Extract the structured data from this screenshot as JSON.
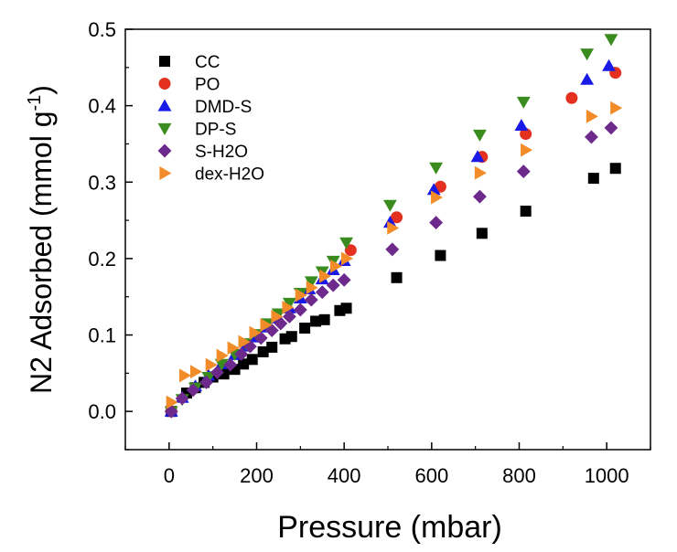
{
  "chart_data": {
    "type": "scatter",
    "title": "",
    "xlabel": "Pressure (mbar)",
    "ylabel_main": "N2 Adsorbed (mmol g",
    "ylabel_sup": "-1",
    "ylabel_close": ")",
    "xlim": [
      -100,
      1100
    ],
    "ylim": [
      -0.05,
      0.5
    ],
    "xticks": [
      0,
      200,
      400,
      600,
      800,
      1000
    ],
    "xtick_labels": [
      "0",
      "200",
      "400",
      "600",
      "800",
      "1000"
    ],
    "yticks": [
      0.0,
      0.1,
      0.2,
      0.3,
      0.4,
      0.5
    ],
    "ytick_labels": [
      "0.0",
      "0.1",
      "0.2",
      "0.3",
      "0.4",
      "0.5"
    ],
    "grid": false,
    "legend_position": "top-left",
    "series": [
      {
        "name": "CC",
        "marker": "square",
        "color": "#000000",
        "points": [
          [
            5,
            0.0
          ],
          [
            40,
            0.024
          ],
          [
            60,
            0.031
          ],
          [
            80,
            0.038
          ],
          [
            100,
            0.045
          ],
          [
            125,
            0.049
          ],
          [
            150,
            0.055
          ],
          [
            170,
            0.062
          ],
          [
            190,
            0.068
          ],
          [
            215,
            0.078
          ],
          [
            235,
            0.084
          ],
          [
            265,
            0.095
          ],
          [
            280,
            0.098
          ],
          [
            310,
            0.109
          ],
          [
            335,
            0.118
          ],
          [
            355,
            0.12
          ],
          [
            390,
            0.132
          ],
          [
            405,
            0.135
          ],
          [
            520,
            0.175
          ],
          [
            620,
            0.204
          ],
          [
            715,
            0.233
          ],
          [
            815,
            0.262
          ],
          [
            970,
            0.305
          ],
          [
            1020,
            0.318
          ]
        ]
      },
      {
        "name": "PO",
        "marker": "circle",
        "color": "#e3301f",
        "points": [
          [
            5,
            0.0
          ],
          [
            415,
            0.211
          ],
          [
            520,
            0.254
          ],
          [
            620,
            0.294
          ],
          [
            715,
            0.333
          ],
          [
            815,
            0.363
          ],
          [
            920,
            0.41
          ],
          [
            1020,
            0.443
          ]
        ]
      },
      {
        "name": "DMD-S",
        "marker": "triangle-up",
        "color": "#1a1ae6",
        "points": [
          [
            5,
            0.0
          ],
          [
            30,
            0.018
          ],
          [
            60,
            0.033
          ],
          [
            90,
            0.047
          ],
          [
            120,
            0.062
          ],
          [
            150,
            0.074
          ],
          [
            175,
            0.085
          ],
          [
            200,
            0.097
          ],
          [
            225,
            0.11
          ],
          [
            250,
            0.122
          ],
          [
            275,
            0.135
          ],
          [
            300,
            0.148
          ],
          [
            320,
            0.16
          ],
          [
            350,
            0.173
          ],
          [
            375,
            0.185
          ],
          [
            400,
            0.197
          ],
          [
            505,
            0.247
          ],
          [
            605,
            0.29
          ],
          [
            705,
            0.333
          ],
          [
            805,
            0.374
          ],
          [
            955,
            0.434
          ],
          [
            1005,
            0.452
          ]
        ]
      },
      {
        "name": "DP-S",
        "marker": "triangle-down",
        "color": "#3a8c1e",
        "points": [
          [
            5,
            0.0
          ],
          [
            30,
            0.016
          ],
          [
            60,
            0.031
          ],
          [
            90,
            0.045
          ],
          [
            120,
            0.062
          ],
          [
            150,
            0.075
          ],
          [
            175,
            0.089
          ],
          [
            200,
            0.101
          ],
          [
            225,
            0.115
          ],
          [
            250,
            0.128
          ],
          [
            275,
            0.142
          ],
          [
            300,
            0.155
          ],
          [
            325,
            0.17
          ],
          [
            350,
            0.183
          ],
          [
            375,
            0.197
          ],
          [
            405,
            0.221
          ],
          [
            505,
            0.27
          ],
          [
            610,
            0.319
          ],
          [
            710,
            0.362
          ],
          [
            810,
            0.405
          ],
          [
            955,
            0.468
          ],
          [
            1010,
            0.487
          ]
        ]
      },
      {
        "name": "S-H2O",
        "marker": "diamond",
        "color": "#6d2a8c",
        "points": [
          [
            5,
            0.0
          ],
          [
            30,
            0.017
          ],
          [
            55,
            0.028
          ],
          [
            85,
            0.038
          ],
          [
            110,
            0.051
          ],
          [
            140,
            0.061
          ],
          [
            165,
            0.075
          ],
          [
            185,
            0.085
          ],
          [
            210,
            0.096
          ],
          [
            235,
            0.106
          ],
          [
            255,
            0.115
          ],
          [
            275,
            0.124
          ],
          [
            300,
            0.133
          ],
          [
            325,
            0.146
          ],
          [
            350,
            0.156
          ],
          [
            375,
            0.165
          ],
          [
            400,
            0.172
          ],
          [
            510,
            0.212
          ],
          [
            610,
            0.247
          ],
          [
            710,
            0.281
          ],
          [
            810,
            0.314
          ],
          [
            965,
            0.359
          ],
          [
            1010,
            0.371
          ]
        ]
      },
      {
        "name": "dex-H2O",
        "marker": "triangle-right",
        "color": "#f28c28",
        "points": [
          [
            5,
            0.012
          ],
          [
            35,
            0.047
          ],
          [
            60,
            0.052
          ],
          [
            95,
            0.061
          ],
          [
            120,
            0.073
          ],
          [
            145,
            0.083
          ],
          [
            170,
            0.091
          ],
          [
            195,
            0.103
          ],
          [
            220,
            0.113
          ],
          [
            245,
            0.124
          ],
          [
            270,
            0.136
          ],
          [
            300,
            0.152
          ],
          [
            325,
            0.162
          ],
          [
            355,
            0.177
          ],
          [
            380,
            0.19
          ],
          [
            405,
            0.2
          ],
          [
            510,
            0.24
          ],
          [
            610,
            0.28
          ],
          [
            710,
            0.312
          ],
          [
            815,
            0.342
          ],
          [
            965,
            0.386
          ],
          [
            1020,
            0.397
          ]
        ]
      }
    ]
  }
}
